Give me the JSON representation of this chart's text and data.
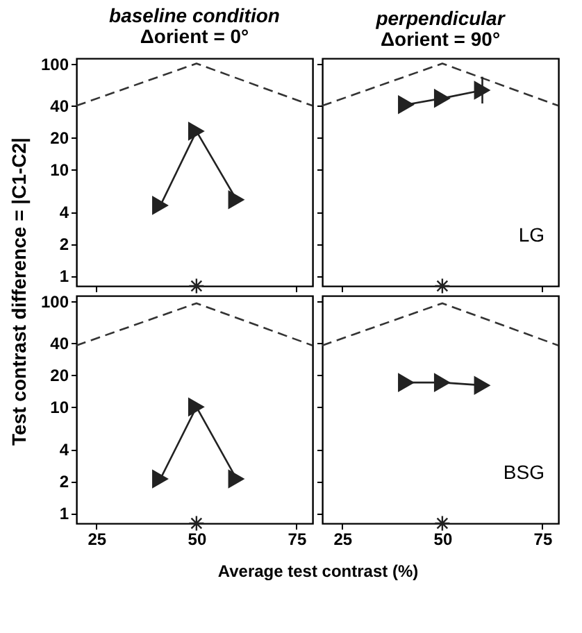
{
  "chart_data": [
    {
      "type": "line",
      "title": "baseline condition",
      "subtitle": "Δorient = 0°",
      "ylabel": "Test contrast difference = |C1-C2|",
      "log": "y",
      "xlim": [
        20,
        79
      ],
      "xticks": [
        25,
        50,
        75
      ],
      "ylim": [
        0.8,
        112
      ],
      "yticks": [
        1,
        2,
        4,
        10,
        20,
        40,
        100
      ],
      "tick_labels": "y",
      "series": [
        {
          "type": "line",
          "x": [
            20,
            50,
            79
          ],
          "values": [
            40,
            100,
            40
          ],
          "color": "#333333",
          "line_style": "dashed",
          "marker": "none"
        },
        {
          "type": "line",
          "x": [
            41,
            50,
            60
          ],
          "values": [
            4.6,
            23,
            5.2
          ],
          "color": "#222222",
          "line_style": "solid",
          "marker": "triangle"
        },
        {
          "type": "scatter",
          "x": [
            50
          ],
          "values": [
            0.8
          ],
          "color": "#222222",
          "marker": "cross"
        }
      ]
    },
    {
      "type": "line",
      "title": "perpendicular",
      "subtitle": "Δorient = 90°",
      "log": "y",
      "xlim": [
        20,
        79
      ],
      "xticks": [
        25,
        50,
        75
      ],
      "ylim": [
        0.8,
        112
      ],
      "yticks": [
        1,
        2,
        4,
        10,
        20,
        40,
        100
      ],
      "tick_labels": false,
      "annotations": [
        "LG"
      ],
      "series": [
        {
          "type": "line",
          "x": [
            20,
            50,
            79
          ],
          "values": [
            40,
            100,
            40
          ],
          "color": "#333333",
          "line_style": "dashed",
          "marker": "none"
        },
        {
          "type": "line",
          "x": [
            41,
            50,
            60
          ],
          "values": [
            41,
            47,
            56
          ],
          "color": "#222222",
          "line_style": "solid",
          "marker": "triangle",
          "errors": [
            null,
            null,
            [
              42,
              75
            ]
          ]
        },
        {
          "type": "scatter",
          "x": [
            50
          ],
          "values": [
            0.8
          ],
          "color": "#222222",
          "marker": "cross"
        }
      ]
    },
    {
      "type": "line",
      "xlabel": "Average test contrast (%)",
      "log": "y",
      "xlim": [
        20,
        79
      ],
      "xticks": [
        25,
        50,
        75
      ],
      "ylim": [
        0.8,
        112
      ],
      "yticks": [
        1,
        2,
        4,
        10,
        20,
        40,
        100
      ],
      "series": [
        {
          "type": "line",
          "x": [
            20,
            50,
            79
          ],
          "values": [
            38,
            95,
            38
          ],
          "color": "#333333",
          "line_style": "dashed",
          "marker": "none"
        },
        {
          "type": "line",
          "x": [
            41,
            50,
            60
          ],
          "values": [
            2.1,
            10,
            2.1
          ],
          "color": "#222222",
          "line_style": "solid",
          "marker": "triangle"
        },
        {
          "type": "scatter",
          "x": [
            50
          ],
          "values": [
            0.8
          ],
          "color": "#222222",
          "marker": "cross"
        }
      ]
    },
    {
      "type": "line",
      "log": "y",
      "xlim": [
        20,
        79
      ],
      "xticks": [
        25,
        50,
        75
      ],
      "ylim": [
        0.8,
        112
      ],
      "yticks": [
        1,
        2,
        4,
        10,
        20,
        40,
        100
      ],
      "tick_labels": "x",
      "annotations": [
        "BSG"
      ],
      "series": [
        {
          "type": "line",
          "x": [
            20,
            50,
            79
          ],
          "values": [
            38,
            95,
            38
          ],
          "color": "#333333",
          "line_style": "dashed",
          "marker": "none"
        },
        {
          "type": "line",
          "x": [
            41,
            50,
            60
          ],
          "values": [
            17,
            17,
            16
          ],
          "color": "#222222",
          "line_style": "solid",
          "marker": "triangle"
        },
        {
          "type": "scatter",
          "x": [
            50
          ],
          "values": [
            0.8
          ],
          "color": "#222222",
          "marker": "cross"
        }
      ]
    }
  ]
}
